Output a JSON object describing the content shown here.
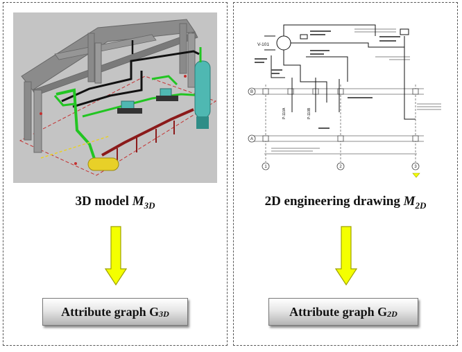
{
  "left": {
    "caption_prefix": "3D model ",
    "caption_symbol": "M",
    "caption_sub": "3D",
    "graph_label": "Attribute graph G",
    "graph_sub": "3D"
  },
  "right": {
    "caption_prefix": "2D engineering drawing  ",
    "caption_symbol": "M",
    "caption_sub": "2D",
    "graph_label": "Attribute graph G",
    "graph_sub": "2D"
  },
  "drawing": {
    "vessel_label": "V-101",
    "grid_labels": [
      "B",
      "A",
      "1",
      "2",
      "3"
    ],
    "pump_labels": [
      "P-110A",
      "P-110B"
    ]
  },
  "colors": {
    "arrow_fill": "#f4ff00",
    "arrow_stroke": "#9fa200",
    "model_background": "#c4c4c4",
    "pipe_green": "#22c522",
    "pipe_red": "#8b1a1a",
    "vessel_cyan": "#4fb8b2",
    "vessel_yellow": "#e8d028"
  },
  "icons": [
    "down-arrow-icon",
    "3d-plant-model-icon",
    "engineering-drawing-icon"
  ]
}
